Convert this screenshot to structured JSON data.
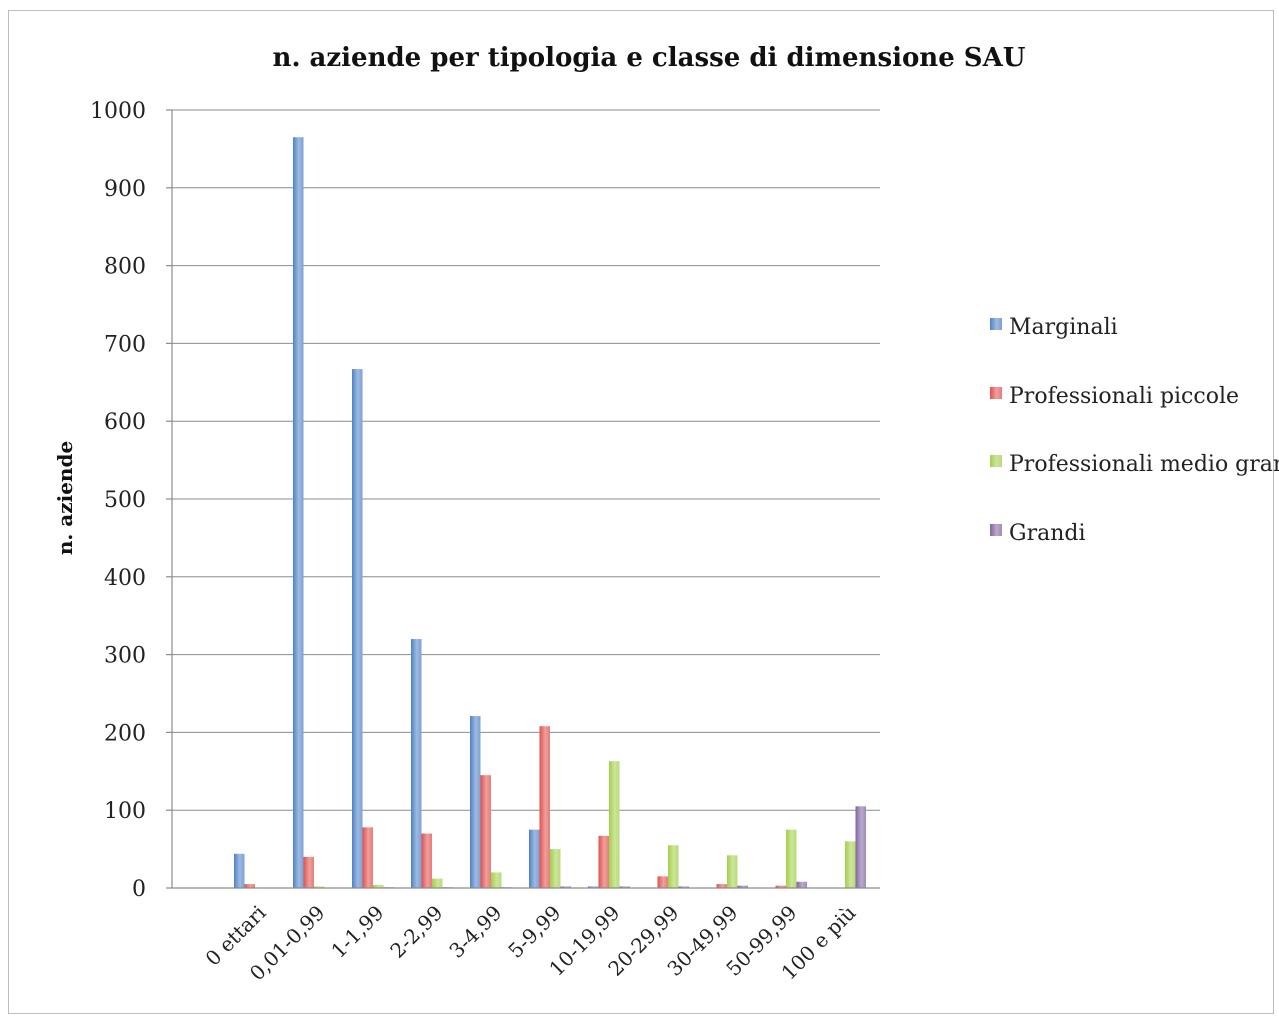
{
  "chart_data": {
    "type": "bar",
    "title": "n. aziende  per tipologia e classe di dimensione SAU",
    "xlabel": "",
    "ylabel": "n. aziende",
    "ylim": [
      0,
      1000
    ],
    "yticks": [
      "0",
      "100",
      "200",
      "300",
      "400",
      "500",
      "600",
      "700",
      "800",
      "900",
      "1000"
    ],
    "grid": true,
    "legend_position": "right",
    "categories": [
      "0 ettari",
      "0,01-0,99",
      "1-1,99",
      "2-2,99",
      "3-4,99",
      "5-9,99",
      "10-19,99",
      "20-29,99",
      "30-49,99",
      "50-99,99",
      "100 e più"
    ],
    "series": [
      {
        "name": "Marginali",
        "color": "#4f81c7",
        "values": [
          44,
          965,
          667,
          320,
          221,
          75,
          2,
          0,
          0,
          0,
          0
        ]
      },
      {
        "name": "Professionali piccole",
        "color": "#e0504c",
        "values": [
          5,
          40,
          78,
          70,
          145,
          208,
          67,
          15,
          5,
          3,
          0
        ]
      },
      {
        "name": "Professionali medio grandi",
        "color": "#a3cf4b",
        "values": [
          0,
          2,
          4,
          12,
          20,
          50,
          163,
          55,
          42,
          75,
          60
        ]
      },
      {
        "name": "Grandi",
        "color": "#8064a2",
        "values": [
          0,
          0,
          1,
          1,
          1,
          2,
          2,
          2,
          3,
          8,
          105
        ]
      }
    ]
  }
}
